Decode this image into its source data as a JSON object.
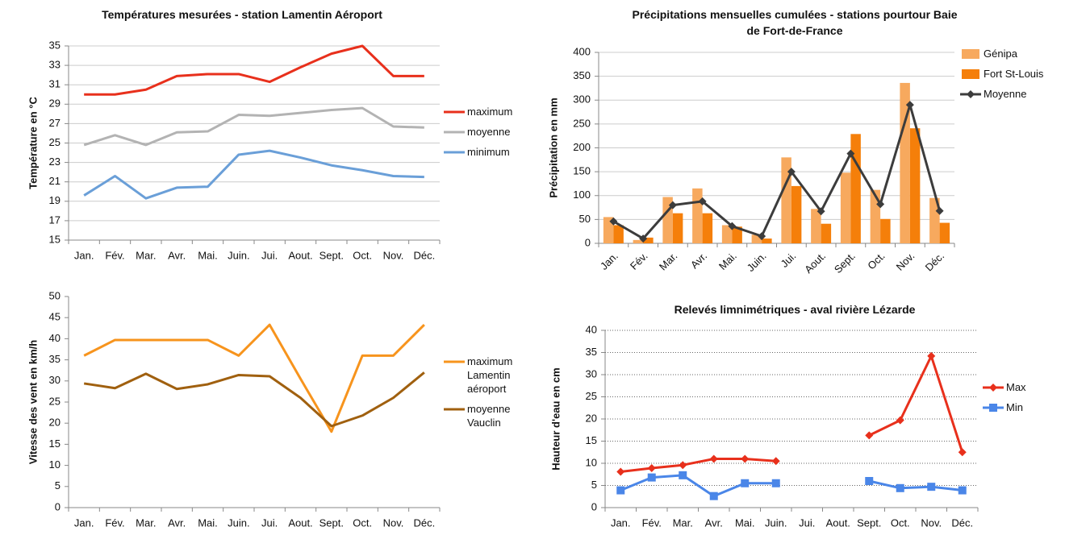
{
  "chart_data": [
    {
      "type": "line",
      "title": "Températures mesurées - station Lamentin Aéroport",
      "y_label": "Température en °C",
      "categories": [
        "Jan.",
        "Fév.",
        "Mar.",
        "Avr.",
        "Mai.",
        "Juin.",
        "Jui.",
        "Aout.",
        "Sept.",
        "Oct.",
        "Nov.",
        "Déc."
      ],
      "series": [
        {
          "name": "maximum",
          "color": "#e8301c",
          "values": [
            30,
            30,
            30.5,
            31.9,
            32.1,
            32.1,
            31.3,
            32.8,
            34.2,
            35,
            31.9,
            31.9
          ]
        },
        {
          "name": "moyenne",
          "color": "#b3b3b3",
          "values": [
            24.8,
            25.8,
            24.8,
            26.1,
            26.2,
            27.9,
            27.8,
            28.1,
            28.4,
            28.6,
            26.7,
            26.6
          ]
        },
        {
          "name": "minimum",
          "color": "#6a9fd8",
          "values": [
            19.6,
            21.6,
            19.3,
            20.4,
            20.5,
            23.8,
            24.2,
            23.5,
            22.7,
            22.2,
            21.6,
            21.5
          ]
        }
      ],
      "ylim": [
        15,
        35
      ],
      "yticks": [
        15,
        17,
        19,
        21,
        23,
        25,
        27,
        29,
        31,
        33,
        35
      ],
      "grid": true,
      "grid_style": "solid",
      "legend": "right"
    },
    {
      "type": "bar",
      "title": "Précipitations mensuelles cumulées - stations pourtour Baie de Fort-de-France",
      "y_label": "Précipitation en mm",
      "categories": [
        "Jan.",
        "Fév.",
        "Mar.",
        "Avr.",
        "Mai.",
        "Juin.",
        "Jui.",
        "Aout.",
        "Sept.",
        "Oct.",
        "Nov.",
        "Déc."
      ],
      "series": [
        {
          "name": "Génipa",
          "color": "#f7a95e",
          "values": [
            55,
            7,
            97,
            115,
            38,
            18,
            180,
            72,
            148,
            112,
            336,
            95
          ]
        },
        {
          "name": "Fort St-Louis",
          "color": "#f57f0a",
          "values": [
            38,
            12,
            63,
            63,
            35,
            10,
            120,
            41,
            229,
            51,
            241,
            43
          ]
        },
        {
          "name": "Moyenne",
          "type": "line",
          "marker": "diamond",
          "color": "#3c3c3c",
          "values": [
            46,
            10,
            80,
            88,
            36,
            15,
            150,
            67,
            188,
            82,
            290,
            68
          ]
        }
      ],
      "ylim": [
        0,
        400
      ],
      "yticks": [
        0,
        50,
        100,
        150,
        200,
        250,
        300,
        350,
        400
      ],
      "grid": true,
      "grid_style": "solid",
      "legend": "right",
      "x_label_rotation": -45
    },
    {
      "type": "line",
      "y_label": "Vitesse des vent en km/h",
      "categories": [
        "Jan.",
        "Fév.",
        "Mar.",
        "Avr.",
        "Mai.",
        "Juin.",
        "Jui.",
        "Aout.",
        "Sept.",
        "Oct.",
        "Nov.",
        "Déc."
      ],
      "series": [
        {
          "name": "maximum Lamentin aéroport",
          "color": "#f7941d",
          "values": [
            36,
            39.7,
            39.7,
            39.7,
            39.7,
            36,
            43.3,
            30.5,
            18,
            36,
            36,
            43.3
          ]
        },
        {
          "name": "moyenne Vauclin",
          "color": "#a0600f",
          "values": [
            29.4,
            28.3,
            31.7,
            28.1,
            29.2,
            31.4,
            31.1,
            26,
            19.3,
            21.8,
            26,
            32
          ]
        }
      ],
      "ylim": [
        0,
        50
      ],
      "yticks": [
        0,
        5,
        10,
        15,
        20,
        25,
        30,
        35,
        40,
        45,
        50
      ],
      "grid": false,
      "legend": "right"
    },
    {
      "type": "line",
      "title": "Relevés limnimétriques - aval rivière Lézarde",
      "y_label": "Hauteur d'eau en cm",
      "categories": [
        "Jan.",
        "Fév.",
        "Mar.",
        "Avr.",
        "Mai.",
        "Juin.",
        "Jui.",
        "Aout.",
        "Sept.",
        "Oct.",
        "Nov.",
        "Déc."
      ],
      "series": [
        {
          "name": "Max",
          "color": "#e8301c",
          "marker": "diamond",
          "values": [
            8.1,
            8.9,
            9.6,
            11,
            11,
            10.5,
            null,
            null,
            16.3,
            19.7,
            34.2,
            12.5
          ]
        },
        {
          "name": "Min",
          "color": "#4a86e8",
          "marker": "square",
          "values": [
            3.9,
            6.8,
            7.3,
            2.6,
            5.5,
            5.5,
            null,
            null,
            6,
            4.4,
            4.7,
            3.9
          ]
        }
      ],
      "ylim": [
        0,
        40
      ],
      "yticks": [
        0,
        5,
        10,
        15,
        20,
        25,
        30,
        35,
        40
      ],
      "grid": true,
      "grid_style": "dotted",
      "legend": "right"
    }
  ]
}
